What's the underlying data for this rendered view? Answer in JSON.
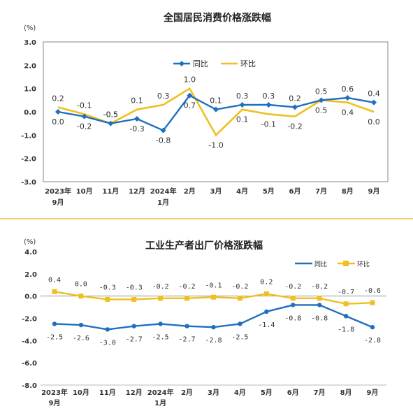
{
  "separator_color": "#e3c440",
  "chart_data": [
    {
      "type": "line",
      "title": "全国居民消费价格涨跌幅",
      "unit": "(%)",
      "categories": [
        [
          "2023年",
          "9月"
        ],
        [
          "10月"
        ],
        [
          "11月"
        ],
        [
          "12月"
        ],
        [
          "2024年",
          "1月"
        ],
        [
          "2月"
        ],
        [
          "3月"
        ],
        [
          "4月"
        ],
        [
          "5月"
        ],
        [
          "6月"
        ],
        [
          "7月"
        ],
        [
          "8月"
        ],
        [
          "9月"
        ]
      ],
      "yticks": [
        "3.0",
        "2.0",
        "1.0",
        "0.0",
        "-1.0",
        "-2.0",
        "-3.0"
      ],
      "ylim": [
        -3,
        3
      ],
      "legend_position": "top-center",
      "series": [
        {
          "name": "同比",
          "color": "#1f6fbf",
          "values": [
            0.0,
            -0.2,
            -0.5,
            -0.3,
            -0.8,
            0.7,
            0.1,
            0.3,
            0.3,
            0.2,
            0.5,
            0.6,
            0.4
          ],
          "labels": [
            "0.0",
            "-0.2",
            "-0.5",
            "-0.3",
            "-0.8",
            "0.7",
            "0.1",
            "0.3",
            "0.3",
            "0.2",
            "0.5",
            "0.6",
            "0.4"
          ]
        },
        {
          "name": "环比",
          "color": "#f0c020",
          "values": [
            0.2,
            -0.1,
            -0.5,
            0.1,
            0.3,
            1.0,
            -1.0,
            0.1,
            -0.1,
            -0.2,
            0.5,
            0.4,
            0.0
          ],
          "labels": [
            "0.2",
            "-0.1",
            "-0.5",
            "0.1",
            "0.3",
            "1.0",
            "-1.0",
            "0.1",
            "-0.1",
            "-0.2",
            "0.5",
            "0.4",
            "0.0"
          ]
        }
      ]
    },
    {
      "type": "line",
      "title": "工业生产者出厂价格涨跌幅",
      "unit": "(%)",
      "categories": [
        [
          "2023年",
          "9月"
        ],
        [
          "10月"
        ],
        [
          "11月"
        ],
        [
          "12月"
        ],
        [
          "2024年",
          "1月"
        ],
        [
          "2月"
        ],
        [
          "3月"
        ],
        [
          "4月"
        ],
        [
          "5月"
        ],
        [
          "6月"
        ],
        [
          "7月"
        ],
        [
          "8月"
        ],
        [
          "9月"
        ]
      ],
      "yticks": [
        "4.0",
        "2.0",
        "0.0",
        "-2.0",
        "-4.0",
        "-6.0",
        "-8.0"
      ],
      "ylim": [
        -8,
        4
      ],
      "legend_position": "top-right",
      "series": [
        {
          "name": "同比",
          "color": "#1f6fbf",
          "values": [
            -2.5,
            -2.6,
            -3.0,
            -2.7,
            -2.5,
            -2.7,
            -2.8,
            -2.5,
            -1.4,
            -0.8,
            -0.8,
            -1.8,
            -2.8
          ],
          "labels": [
            "-2.5",
            "-2.6",
            "-3.0",
            "-2.7",
            "-2.5",
            "-2.7",
            "-2.8",
            "-2.5",
            "-1.4",
            "-0.8",
            "-0.8",
            "-1.8",
            "-2.8"
          ]
        },
        {
          "name": "环比",
          "color": "#f0c020",
          "values": [
            0.4,
            0.0,
            -0.3,
            -0.3,
            -0.2,
            -0.2,
            -0.1,
            -0.2,
            0.2,
            -0.2,
            -0.2,
            -0.7,
            -0.6
          ],
          "labels": [
            "0.4",
            "0.0",
            "-0.3",
            "-0.3",
            "-0.2",
            "-0.2",
            "-0.1",
            "-0.2",
            "0.2",
            "-0.2",
            "-0.2",
            "-0.7",
            "-0.6"
          ]
        }
      ]
    }
  ]
}
